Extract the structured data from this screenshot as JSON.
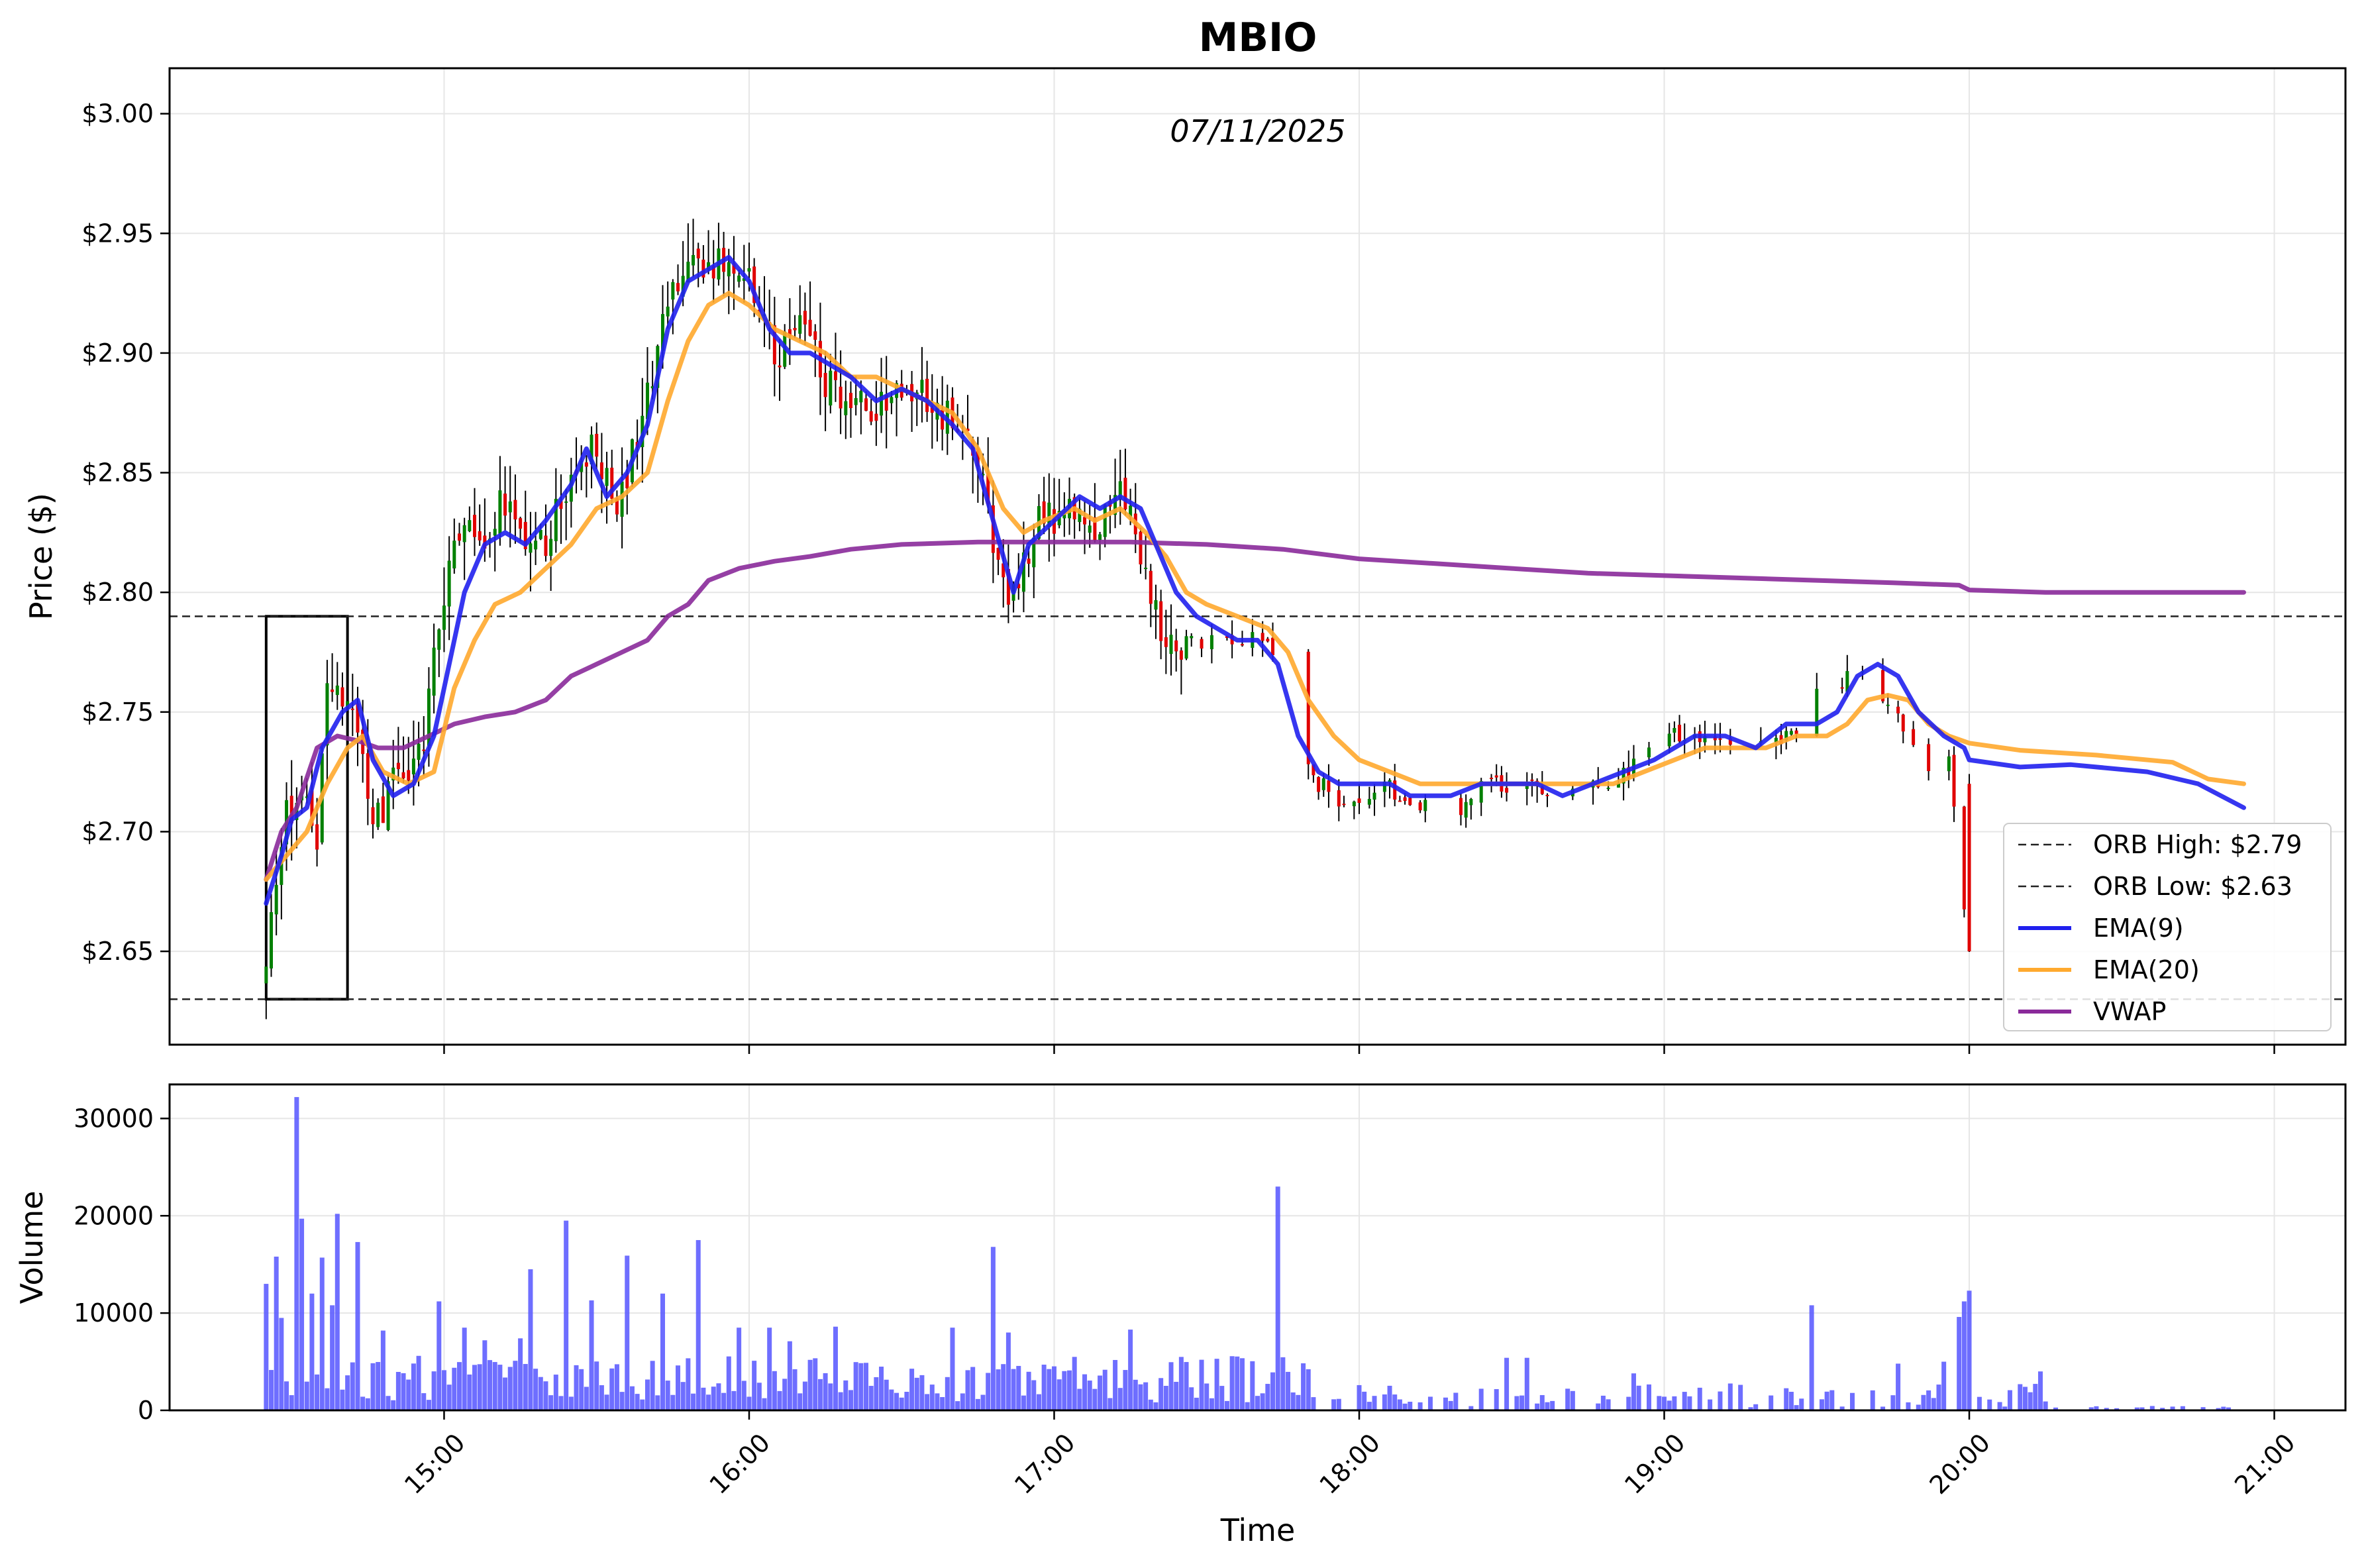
{
  "chart_data": {
    "type": "candlestick",
    "title": "MBIO",
    "subtitle": "07/11/2025",
    "colors": {
      "up": "#008000",
      "down": "#e00000",
      "ema9": "#2020ee",
      "ema20": "#ffa92e",
      "vwap": "#8a2a9a",
      "volume": "#5555ff",
      "orb_line": "#222222",
      "grid": "#e6e6e6"
    },
    "price_panel": {
      "ylabel": "Price ($)",
      "ylim": [
        2.611,
        3.019
      ],
      "yticks": [
        2.65,
        2.7,
        2.75,
        2.8,
        2.85,
        2.9,
        2.95,
        3.0
      ],
      "ytick_labels": [
        "$2.65",
        "$2.70",
        "$2.75",
        "$2.80",
        "$2.85",
        "$2.90",
        "$2.95",
        "$3.00"
      ]
    },
    "volume_panel": {
      "ylabel": "Volume",
      "ylim": [
        0,
        33500
      ],
      "yticks": [
        0,
        10000,
        20000,
        30000
      ],
      "ytick_labels": [
        "0",
        "10000",
        "20000",
        "30000"
      ]
    },
    "x_axis": {
      "xlabel": "Time",
      "xlim": [
        "14:06",
        "21:14"
      ],
      "xticks": [
        "15:00",
        "16:00",
        "17:00",
        "18:00",
        "19:00",
        "20:00",
        "21:00"
      ],
      "xtick_labels": [
        "15:00",
        "16:00",
        "17:00",
        "18:00",
        "19:00",
        "20:00",
        "21:00"
      ]
    },
    "orb": {
      "high": 2.79,
      "low": 2.63,
      "start": "14:25",
      "end": "14:41"
    },
    "legend": {
      "position": "lower-right",
      "entries": [
        {
          "key": "orb_high",
          "label": "ORB High: $2.79",
          "style": "dashed"
        },
        {
          "key": "orb_low",
          "label": "ORB Low: $2.63",
          "style": "dashed"
        },
        {
          "key": "ema9",
          "label": "EMA(9)",
          "style": "solid"
        },
        {
          "key": "ema20",
          "label": "EMA(20)",
          "style": "solid"
        },
        {
          "key": "vwap",
          "label": "VWAP",
          "style": "solid"
        }
      ]
    },
    "price_anchors": [
      [
        "14:25",
        2.64
      ],
      [
        "14:28",
        2.7
      ],
      [
        "14:32",
        2.72
      ],
      [
        "14:35",
        2.7
      ],
      [
        "14:37",
        2.77
      ],
      [
        "14:40",
        2.75
      ],
      [
        "14:43",
        2.74
      ],
      [
        "14:46",
        2.7
      ],
      [
        "14:50",
        2.72
      ],
      [
        "14:56",
        2.74
      ],
      [
        "15:00",
        2.8
      ],
      [
        "15:04",
        2.83
      ],
      [
        "15:08",
        2.82
      ],
      [
        "15:12",
        2.84
      ],
      [
        "15:15",
        2.82
      ],
      [
        "15:20",
        2.82
      ],
      [
        "15:25",
        2.85
      ],
      [
        "15:30",
        2.86
      ],
      [
        "15:34",
        2.84
      ],
      [
        "15:38",
        2.86
      ],
      [
        "15:42",
        2.9
      ],
      [
        "15:45",
        2.93
      ],
      [
        "15:50",
        2.94
      ],
      [
        "15:55",
        2.94
      ],
      [
        "16:00",
        2.93
      ],
      [
        "16:05",
        2.9
      ],
      [
        "16:10",
        2.91
      ],
      [
        "16:15",
        2.89
      ],
      [
        "16:20",
        2.88
      ],
      [
        "16:25",
        2.88
      ],
      [
        "16:30",
        2.89
      ],
      [
        "16:35",
        2.88
      ],
      [
        "16:40",
        2.87
      ],
      [
        "16:45",
        2.86
      ],
      [
        "16:48",
        2.82
      ],
      [
        "16:50",
        2.8
      ],
      [
        "16:53",
        2.8
      ],
      [
        "16:56",
        2.83
      ],
      [
        "17:00",
        2.83
      ],
      [
        "17:05",
        2.84
      ],
      [
        "17:08",
        2.83
      ],
      [
        "17:12",
        2.84
      ],
      [
        "17:16",
        2.83
      ],
      [
        "17:20",
        2.79
      ],
      [
        "17:25",
        2.78
      ],
      [
        "17:35",
        2.78
      ],
      [
        "17:42",
        2.78
      ],
      [
        "17:45",
        2.76
      ],
      [
        "17:48",
        2.73
      ],
      [
        "17:52",
        2.72
      ],
      [
        "17:58",
        2.71
      ],
      [
        "18:05",
        2.72
      ],
      [
        "18:10",
        2.71
      ],
      [
        "18:20",
        2.71
      ],
      [
        "18:25",
        2.72
      ],
      [
        "18:30",
        2.72
      ],
      [
        "18:35",
        2.72
      ],
      [
        "18:40",
        2.71
      ],
      [
        "18:45",
        2.72
      ],
      [
        "18:50",
        2.72
      ],
      [
        "18:55",
        2.73
      ],
      [
        "19:00",
        2.74
      ],
      [
        "19:05",
        2.74
      ],
      [
        "19:10",
        2.74
      ],
      [
        "19:15",
        2.74
      ],
      [
        "19:20",
        2.74
      ],
      [
        "19:25",
        2.74
      ],
      [
        "19:28",
        2.75
      ],
      [
        "19:31",
        2.76
      ],
      [
        "19:35",
        2.76
      ],
      [
        "19:38",
        2.77
      ],
      [
        "19:41",
        2.76
      ],
      [
        "19:45",
        2.75
      ],
      [
        "19:50",
        2.73
      ],
      [
        "19:53",
        2.72
      ],
      [
        "19:56",
        2.73
      ],
      [
        "20:00",
        2.65
      ]
    ],
    "ema9": [
      [
        "14:25",
        2.67
      ],
      [
        "14:28",
        2.69
      ],
      [
        "14:30",
        2.705
      ],
      [
        "14:33",
        2.71
      ],
      [
        "14:36",
        2.735
      ],
      [
        "14:40",
        2.75
      ],
      [
        "14:43",
        2.755
      ],
      [
        "14:46",
        2.73
      ],
      [
        "14:50",
        2.715
      ],
      [
        "14:54",
        2.72
      ],
      [
        "14:58",
        2.74
      ],
      [
        "15:00",
        2.76
      ],
      [
        "15:04",
        2.8
      ],
      [
        "15:08",
        2.82
      ],
      [
        "15:12",
        2.825
      ],
      [
        "15:16",
        2.82
      ],
      [
        "15:20",
        2.83
      ],
      [
        "15:25",
        2.845
      ],
      [
        "15:28",
        2.86
      ],
      [
        "15:32",
        2.84
      ],
      [
        "15:36",
        2.85
      ],
      [
        "15:40",
        2.87
      ],
      [
        "15:44",
        2.91
      ],
      [
        "15:48",
        2.93
      ],
      [
        "15:52",
        2.935
      ],
      [
        "15:56",
        2.94
      ],
      [
        "16:00",
        2.93
      ],
      [
        "16:04",
        2.91
      ],
      [
        "16:08",
        2.9
      ],
      [
        "16:12",
        2.9
      ],
      [
        "16:16",
        2.895
      ],
      [
        "16:20",
        2.89
      ],
      [
        "16:25",
        2.88
      ],
      [
        "16:30",
        2.885
      ],
      [
        "16:35",
        2.88
      ],
      [
        "16:40",
        2.87
      ],
      [
        "16:44",
        2.86
      ],
      [
        "16:48",
        2.83
      ],
      [
        "16:52",
        2.8
      ],
      [
        "16:55",
        2.82
      ],
      [
        "17:00",
        2.83
      ],
      [
        "17:05",
        2.84
      ],
      [
        "17:09",
        2.835
      ],
      [
        "17:13",
        2.84
      ],
      [
        "17:17",
        2.835
      ],
      [
        "17:20",
        2.82
      ],
      [
        "17:24",
        2.8
      ],
      [
        "17:28",
        2.79
      ],
      [
        "17:32",
        2.785
      ],
      [
        "17:36",
        2.78
      ],
      [
        "17:40",
        2.78
      ],
      [
        "17:44",
        2.77
      ],
      [
        "17:48",
        2.74
      ],
      [
        "17:52",
        2.725
      ],
      [
        "17:56",
        2.72
      ],
      [
        "18:06",
        2.72
      ],
      [
        "18:10",
        2.715
      ],
      [
        "18:18",
        2.715
      ],
      [
        "18:24",
        2.72
      ],
      [
        "18:30",
        2.72
      ],
      [
        "18:35",
        2.72
      ],
      [
        "18:40",
        2.715
      ],
      [
        "18:46",
        2.72
      ],
      [
        "18:52",
        2.725
      ],
      [
        "18:58",
        2.73
      ],
      [
        "19:02",
        2.735
      ],
      [
        "19:06",
        2.74
      ],
      [
        "19:12",
        2.74
      ],
      [
        "19:18",
        2.735
      ],
      [
        "19:24",
        2.745
      ],
      [
        "19:30",
        2.745
      ],
      [
        "19:34",
        2.75
      ],
      [
        "19:38",
        2.765
      ],
      [
        "19:42",
        2.77
      ],
      [
        "19:46",
        2.765
      ],
      [
        "19:50",
        2.75
      ],
      [
        "19:55",
        2.74
      ],
      [
        "19:59",
        2.735
      ],
      [
        "20:00",
        2.73
      ],
      [
        "20:10",
        2.727
      ],
      [
        "20:20",
        2.728
      ],
      [
        "20:35",
        2.725
      ],
      [
        "20:45",
        2.72
      ],
      [
        "20:54",
        2.71
      ]
    ],
    "ema20": [
      [
        "14:25",
        2.68
      ],
      [
        "14:29",
        2.69
      ],
      [
        "14:33",
        2.7
      ],
      [
        "14:37",
        2.72
      ],
      [
        "14:41",
        2.735
      ],
      [
        "14:44",
        2.74
      ],
      [
        "14:48",
        2.725
      ],
      [
        "14:53",
        2.72
      ],
      [
        "14:58",
        2.725
      ],
      [
        "15:02",
        2.76
      ],
      [
        "15:06",
        2.78
      ],
      [
        "15:10",
        2.795
      ],
      [
        "15:15",
        2.8
      ],
      [
        "15:20",
        2.81
      ],
      [
        "15:25",
        2.82
      ],
      [
        "15:30",
        2.835
      ],
      [
        "15:35",
        2.84
      ],
      [
        "15:40",
        2.85
      ],
      [
        "15:44",
        2.88
      ],
      [
        "15:48",
        2.905
      ],
      [
        "15:52",
        2.92
      ],
      [
        "15:56",
        2.925
      ],
      [
        "16:00",
        2.92
      ],
      [
        "16:05",
        2.91
      ],
      [
        "16:10",
        2.905
      ],
      [
        "16:15",
        2.9
      ],
      [
        "16:20",
        2.89
      ],
      [
        "16:25",
        2.89
      ],
      [
        "16:30",
        2.885
      ],
      [
        "16:35",
        2.88
      ],
      [
        "16:40",
        2.875
      ],
      [
        "16:45",
        2.86
      ],
      [
        "16:50",
        2.835
      ],
      [
        "16:54",
        2.825
      ],
      [
        "16:58",
        2.83
      ],
      [
        "17:04",
        2.835
      ],
      [
        "17:08",
        2.83
      ],
      [
        "17:13",
        2.835
      ],
      [
        "17:18",
        2.825
      ],
      [
        "17:22",
        2.815
      ],
      [
        "17:26",
        2.8
      ],
      [
        "17:30",
        2.795
      ],
      [
        "17:36",
        2.79
      ],
      [
        "17:42",
        2.785
      ],
      [
        "17:46",
        2.775
      ],
      [
        "17:50",
        2.755
      ],
      [
        "17:55",
        2.74
      ],
      [
        "18:00",
        2.73
      ],
      [
        "18:06",
        2.725
      ],
      [
        "18:12",
        2.72
      ],
      [
        "18:20",
        2.72
      ],
      [
        "18:26",
        2.72
      ],
      [
        "18:32",
        2.72
      ],
      [
        "18:38",
        2.72
      ],
      [
        "18:44",
        2.72
      ],
      [
        "18:50",
        2.72
      ],
      [
        "18:56",
        2.725
      ],
      [
        "19:02",
        2.73
      ],
      [
        "19:08",
        2.735
      ],
      [
        "19:14",
        2.735
      ],
      [
        "19:20",
        2.735
      ],
      [
        "19:26",
        2.74
      ],
      [
        "19:32",
        2.74
      ],
      [
        "19:36",
        2.745
      ],
      [
        "19:40",
        2.755
      ],
      [
        "19:44",
        2.757
      ],
      [
        "19:48",
        2.755
      ],
      [
        "19:52",
        2.745
      ],
      [
        "19:56",
        2.74
      ],
      [
        "20:00",
        2.737
      ],
      [
        "20:10",
        2.734
      ],
      [
        "20:25",
        2.732
      ],
      [
        "20:40",
        2.729
      ],
      [
        "20:47",
        2.722
      ],
      [
        "20:54",
        2.72
      ]
    ],
    "vwap": [
      [
        "14:25",
        2.68
      ],
      [
        "14:28",
        2.7
      ],
      [
        "14:31",
        2.71
      ],
      [
        "14:35",
        2.735
      ],
      [
        "14:39",
        2.74
      ],
      [
        "14:43",
        2.738
      ],
      [
        "14:47",
        2.735
      ],
      [
        "14:52",
        2.735
      ],
      [
        "14:57",
        2.74
      ],
      [
        "15:02",
        2.745
      ],
      [
        "15:08",
        2.748
      ],
      [
        "15:14",
        2.75
      ],
      [
        "15:20",
        2.755
      ],
      [
        "15:25",
        2.765
      ],
      [
        "15:30",
        2.77
      ],
      [
        "15:35",
        2.775
      ],
      [
        "15:40",
        2.78
      ],
      [
        "15:44",
        2.79
      ],
      [
        "15:48",
        2.795
      ],
      [
        "15:52",
        2.805
      ],
      [
        "15:58",
        2.81
      ],
      [
        "16:05",
        2.813
      ],
      [
        "16:12",
        2.815
      ],
      [
        "16:20",
        2.818
      ],
      [
        "16:30",
        2.82
      ],
      [
        "16:45",
        2.821
      ],
      [
        "17:00",
        2.821
      ],
      [
        "17:15",
        2.821
      ],
      [
        "17:30",
        2.82
      ],
      [
        "17:45",
        2.818
      ],
      [
        "18:00",
        2.814
      ],
      [
        "18:15",
        2.812
      ],
      [
        "18:30",
        2.81
      ],
      [
        "18:45",
        2.808
      ],
      [
        "19:00",
        2.807
      ],
      [
        "19:15",
        2.806
      ],
      [
        "19:30",
        2.805
      ],
      [
        "19:45",
        2.804
      ],
      [
        "19:58",
        2.803
      ],
      [
        "20:00",
        2.801
      ],
      [
        "20:15",
        2.8
      ],
      [
        "20:30",
        2.8
      ],
      [
        "20:54",
        2.8
      ]
    ],
    "volume_spikes": [
      [
        "14:25",
        13000
      ],
      [
        "14:27",
        15800
      ],
      [
        "14:28",
        9500
      ],
      [
        "14:31",
        32200
      ],
      [
        "14:32",
        19700
      ],
      [
        "14:34",
        12000
      ],
      [
        "14:36",
        15700
      ],
      [
        "14:38",
        10800
      ],
      [
        "14:39",
        20200
      ],
      [
        "14:43",
        17300
      ],
      [
        "14:48",
        8200
      ],
      [
        "14:59",
        11200
      ],
      [
        "15:04",
        8500
      ],
      [
        "15:08",
        7200
      ],
      [
        "15:15",
        7400
      ],
      [
        "15:17",
        14500
      ],
      [
        "15:24",
        19500
      ],
      [
        "15:29",
        11300
      ],
      [
        "15:36",
        15900
      ],
      [
        "15:43",
        12000
      ],
      [
        "15:50",
        17500
      ],
      [
        "15:58",
        8500
      ],
      [
        "16:04",
        8500
      ],
      [
        "16:08",
        7100
      ],
      [
        "16:17",
        8600
      ],
      [
        "16:40",
        8500
      ],
      [
        "16:48",
        16800
      ],
      [
        "16:51",
        8000
      ],
      [
        "17:15",
        8300
      ],
      [
        "17:29",
        5200
      ],
      [
        "17:32",
        5300
      ],
      [
        "17:44",
        23000
      ],
      [
        "18:29",
        5400
      ],
      [
        "18:33",
        5400
      ],
      [
        "18:54",
        3800
      ],
      [
        "19:29",
        10800
      ],
      [
        "19:46",
        4800
      ],
      [
        "19:55",
        5000
      ],
      [
        "19:58",
        9600
      ],
      [
        "19:59",
        11200
      ],
      [
        "20:00",
        12300
      ],
      [
        "20:14",
        4000
      ]
    ]
  }
}
